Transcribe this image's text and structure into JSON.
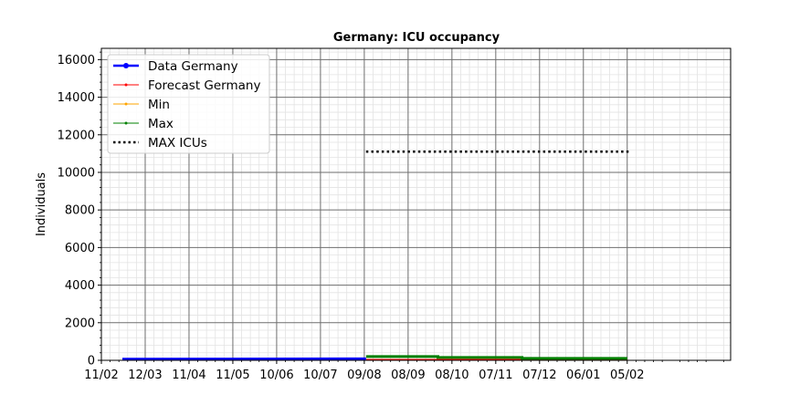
{
  "chart_data": {
    "type": "line",
    "title": "Germany: ICU occupancy",
    "xlabel": "",
    "ylabel": "Individuals",
    "ylim": [
      0,
      16600
    ],
    "xlim": [
      0,
      359
    ],
    "yticks": [
      0,
      2000,
      4000,
      6000,
      8000,
      10000,
      12000,
      14000,
      16000
    ],
    "ytick_labels": [
      "0",
      "2000",
      "4000",
      "6000",
      "8000",
      "10000",
      "12000",
      "14000",
      "16000"
    ],
    "xticks": [
      0,
      25,
      50,
      75,
      100,
      125,
      150,
      175,
      200,
      225,
      250,
      275,
      300
    ],
    "xtick_labels": [
      "11/02",
      "12/03",
      "11/04",
      "11/05",
      "10/06",
      "10/07",
      "09/08",
      "08/09",
      "08/10",
      "07/11",
      "07/12",
      "06/01",
      "05/02"
    ],
    "grid": true,
    "legend_position": "top-left",
    "series": [
      {
        "name": "Data Germany",
        "color": "#0000ff",
        "style": "solid-thick-dot",
        "x": [
          12,
          151
        ],
        "y": [
          60,
          80
        ]
      },
      {
        "name": "Forecast Germany",
        "color": "#ff0000",
        "style": "solid-thin",
        "x": [
          151,
          300
        ],
        "y": [
          40,
          40
        ]
      },
      {
        "name": "Min",
        "color": "#ffa500",
        "style": "solid-thin",
        "x": [
          151,
          300
        ],
        "y": [
          20,
          20
        ]
      },
      {
        "name": "Max",
        "color": "#008000",
        "style": "step",
        "x": [
          151,
          192,
          192,
          240,
          240,
          300
        ],
        "y": [
          200,
          200,
          150,
          150,
          100,
          100
        ]
      },
      {
        "name": "MAX ICUs",
        "color": "#000000",
        "style": "dotted",
        "x": [
          151,
          301
        ],
        "y": [
          11100,
          11100
        ]
      }
    ]
  }
}
